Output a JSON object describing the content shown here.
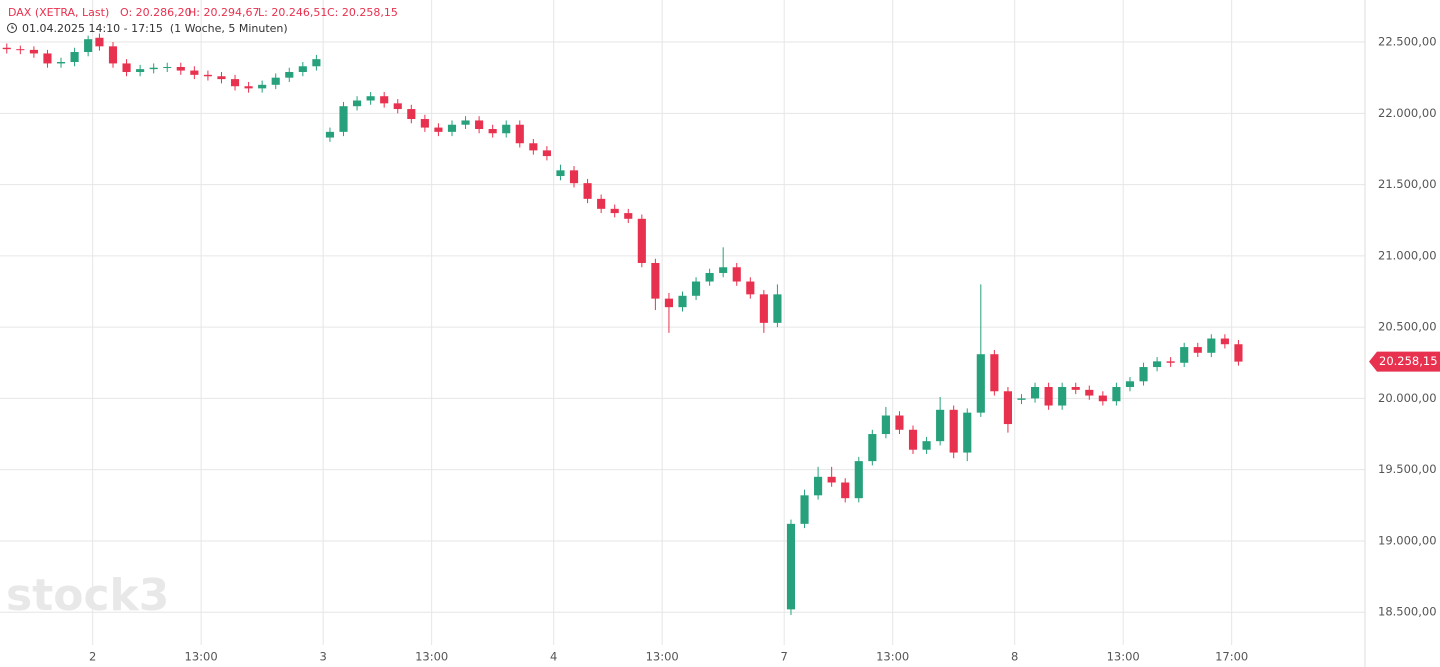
{
  "chart_data": {
    "type": "candlestick",
    "title": "DAX (XETRA, Last)",
    "ohlc_labels": [
      "O: 20.286,20",
      "H: 20.294,67",
      "L: 20.246,51",
      "C: 20.258,15"
    ],
    "subtitle": "01.04.2025 14:10 - 17:15  (1 Woche, 5 Minuten)",
    "watermark": "stock3",
    "up_color": "#26a17b",
    "down_color": "#e8314f",
    "grid": true,
    "x": [
      3,
      9,
      15,
      21,
      27,
      33,
      39,
      44,
      50,
      56,
      62,
      68,
      74,
      80,
      86,
      92,
      98,
      104,
      110,
      116,
      122,
      128,
      134,
      140,
      146,
      152,
      158,
      164,
      170,
      176,
      182,
      188,
      194,
      200,
      206,
      212,
      218,
      224,
      230,
      236,
      242,
      248,
      254,
      260,
      266,
      272,
      278,
      284,
      290,
      296,
      302,
      308,
      314,
      320,
      326,
      332,
      338,
      344,
      350,
      356,
      362,
      368,
      374,
      380,
      386,
      392,
      398,
      404,
      410,
      416,
      422,
      428,
      434,
      440,
      446,
      452,
      458,
      464,
      470,
      476,
      482,
      488,
      494,
      500,
      506,
      512,
      518,
      524,
      530,
      536,
      542,
      548
    ],
    "open": [
      22460,
      22450,
      22445,
      22420,
      22350,
      22360,
      22430,
      22530,
      22470,
      22350,
      22290,
      22310,
      22320,
      22325,
      22300,
      22270,
      22260,
      22240,
      22190,
      22175,
      22200,
      22250,
      22290,
      22330,
      21830,
      21870,
      22050,
      22090,
      22120,
      22070,
      22030,
      21960,
      21900,
      21870,
      21920,
      21950,
      21890,
      21860,
      21920,
      21790,
      21740,
      21560,
      21600,
      21510,
      21400,
      21330,
      21300,
      21260,
      20950,
      20700,
      20640,
      20720,
      20820,
      20880,
      20920,
      20820,
      20730,
      20530,
      18520,
      19120,
      19320,
      19450,
      19410,
      19300,
      19560,
      19750,
      19880,
      19780,
      19640,
      19700,
      19920,
      19620,
      19900,
      20310,
      20050,
      19990,
      20000,
      20080,
      19950,
      20080,
      20060,
      20020,
      19980,
      20080,
      20120,
      20220,
      20260,
      20250,
      20360,
      20320,
      20420,
      20380
    ],
    "high": [
      22490,
      22475,
      22470,
      22445,
      22390,
      22460,
      22545,
      22560,
      22500,
      22380,
      22340,
      22350,
      22355,
      22355,
      22330,
      22300,
      22290,
      22270,
      22220,
      22230,
      22280,
      22320,
      22360,
      22410,
      21900,
      22080,
      22120,
      22150,
      22150,
      22100,
      22060,
      21990,
      21930,
      21950,
      21980,
      21980,
      21920,
      21950,
      21950,
      21820,
      21770,
      21640,
      21630,
      21540,
      21430,
      21360,
      21330,
      21290,
      20980,
      20740,
      20750,
      20850,
      20910,
      21060,
      20950,
      20850,
      20760,
      20800,
      19150,
      19360,
      19520,
      19520,
      19440,
      19590,
      19780,
      19940,
      19910,
      19810,
      19730,
      20010,
      19950,
      19930,
      20800,
      20340,
      20080,
      20030,
      20110,
      20110,
      20110,
      20110,
      20090,
      20050,
      20110,
      20150,
      20250,
      20290,
      20290,
      20390,
      20390,
      20450,
      20450,
      20410
    ],
    "low": [
      22420,
      22415,
      22390,
      22320,
      22320,
      22330,
      22400,
      22440,
      22320,
      22260,
      22260,
      22280,
      22290,
      22270,
      22240,
      22230,
      22210,
      22160,
      22145,
      22145,
      22170,
      22220,
      22260,
      22300,
      21800,
      21840,
      22020,
      22060,
      22040,
      22000,
      21930,
      21870,
      21840,
      21840,
      21890,
      21860,
      21830,
      21830,
      21760,
      21710,
      21670,
      21530,
      21480,
      21370,
      21300,
      21270,
      21230,
      20920,
      20620,
      20460,
      20610,
      20690,
      20790,
      20850,
      20790,
      20700,
      20460,
      20500,
      18480,
      19090,
      19290,
      19380,
      19270,
      19270,
      19530,
      19720,
      19750,
      19610,
      19610,
      19670,
      19580,
      19560,
      19870,
      20020,
      19760,
      19960,
      19970,
      19920,
      19920,
      20030,
      19990,
      19950,
      19950,
      20050,
      20090,
      20190,
      20220,
      20220,
      20290,
      20290,
      20350,
      20230
    ],
    "close": [
      22450,
      22445,
      22420,
      22350,
      22360,
      22430,
      22520,
      22470,
      22350,
      22290,
      22310,
      22320,
      22325,
      22300,
      22270,
      22260,
      22240,
      22190,
      22175,
      22200,
      22250,
      22290,
      22330,
      22380,
      21870,
      22050,
      22090,
      22120,
      22070,
      22030,
      21960,
      21900,
      21870,
      21920,
      21950,
      21890,
      21860,
      21920,
      21790,
      21740,
      21700,
      21600,
      21510,
      21400,
      21330,
      21300,
      21260,
      20950,
      20700,
      20640,
      20720,
      20820,
      20880,
      20920,
      20820,
      20730,
      20530,
      20730,
      19120,
      19320,
      19450,
      19410,
      19300,
      19560,
      19750,
      19880,
      19780,
      19640,
      19700,
      19920,
      19620,
      19900,
      20310,
      20050,
      19820,
      20000,
      20080,
      19950,
      20080,
      20060,
      20020,
      19980,
      20080,
      20120,
      20220,
      20260,
      20250,
      20360,
      20320,
      20420,
      20380,
      20258.15
    ],
    "xlim": [
      0,
      604
    ],
    "xticks": [
      {
        "value": 41,
        "label": "2"
      },
      {
        "value": 89,
        "label": "13:00"
      },
      {
        "value": 143,
        "label": "3"
      },
      {
        "value": 191,
        "label": "13:00"
      },
      {
        "value": 245,
        "label": "4"
      },
      {
        "value": 293,
        "label": "13:00"
      },
      {
        "value": 347,
        "label": "7"
      },
      {
        "value": 395,
        "label": "13:00"
      },
      {
        "value": 449,
        "label": "8"
      },
      {
        "value": 497,
        "label": "13:00"
      },
      {
        "value": 545,
        "label": "17:00"
      }
    ],
    "ylim": [
      18270,
      22795
    ],
    "yticks": [
      {
        "value": 18500,
        "label": "18.500,00"
      },
      {
        "value": 19000,
        "label": "19.000,00"
      },
      {
        "value": 19500,
        "label": "19.500,00"
      },
      {
        "value": 20000,
        "label": "20.000,00"
      },
      {
        "value": 20500,
        "label": "20.500,00"
      },
      {
        "value": 21000,
        "label": "21.000,00"
      },
      {
        "value": 21500,
        "label": "21.500,00"
      },
      {
        "value": 22000,
        "label": "22.000,00"
      },
      {
        "value": 22500,
        "label": "22.500,00"
      }
    ],
    "last_price": {
      "value": 20258.15,
      "label": "20.258,15"
    }
  }
}
